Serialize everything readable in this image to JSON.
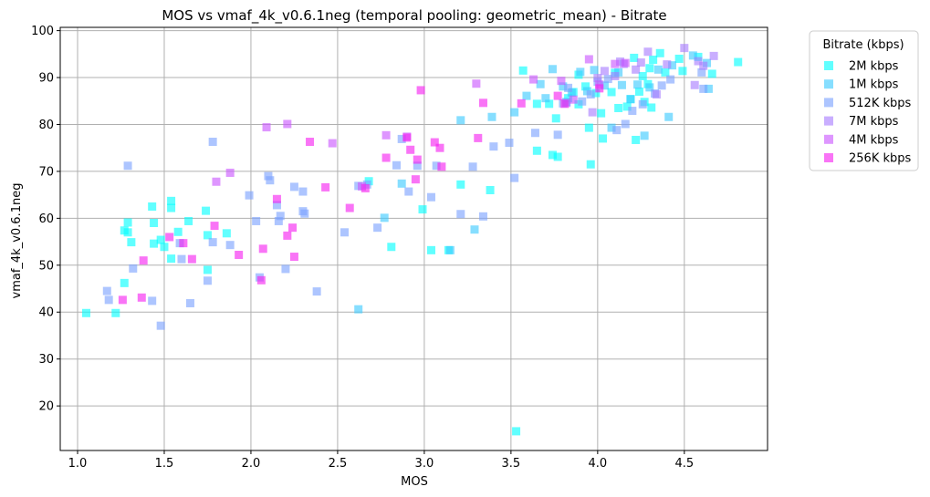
{
  "chart_data": {
    "type": "scatter",
    "title": "MOS vs vmaf_4k_v0.6.1neg (temporal pooling: geometric_mean) - Bitrate",
    "xlabel": "MOS",
    "ylabel": "vmaf_4k_v0.6.1neg",
    "xlim": [
      0.9,
      4.98
    ],
    "ylim": [
      10.5,
      100.7
    ],
    "xticks": [
      1.0,
      1.5,
      2.0,
      2.5,
      3.0,
      3.5,
      4.0,
      4.5
    ],
    "xtick_labels": [
      "1.0",
      "1.5",
      "2.0",
      "2.5",
      "3.0",
      "3.5",
      "4.0",
      "4.5"
    ],
    "yticks": [
      20,
      30,
      40,
      50,
      60,
      70,
      80,
      90,
      100
    ],
    "ytick_labels": [
      "20",
      "30",
      "40",
      "50",
      "60",
      "70",
      "80",
      "90",
      "100"
    ],
    "grid": true,
    "marker": "square",
    "legend": {
      "title": "Bitrate (kbps)",
      "placement": "outside-top-right"
    },
    "series": [
      {
        "name": "2M kbps",
        "color": "#00ffff",
        "points": [
          [
            1.05,
            39.8
          ],
          [
            1.22,
            39.8
          ],
          [
            1.27,
            46.2
          ],
          [
            1.27,
            57.4
          ],
          [
            1.29,
            59.1
          ],
          [
            1.29,
            57.0
          ],
          [
            1.31,
            54.9
          ],
          [
            1.43,
            62.5
          ],
          [
            1.44,
            59.0
          ],
          [
            1.44,
            54.6
          ],
          [
            1.48,
            55.4
          ],
          [
            1.5,
            53.9
          ],
          [
            1.54,
            63.7
          ],
          [
            1.54,
            62.2
          ],
          [
            1.54,
            51.4
          ],
          [
            1.58,
            57.1
          ],
          [
            1.64,
            59.4
          ],
          [
            1.74,
            61.6
          ],
          [
            1.75,
            56.4
          ],
          [
            1.75,
            49.0
          ],
          [
            1.86,
            56.8
          ],
          [
            2.68,
            67.9
          ],
          [
            2.81,
            53.9
          ],
          [
            2.99,
            61.9
          ],
          [
            3.04,
            53.2
          ],
          [
            3.14,
            53.2
          ],
          [
            3.21,
            67.2
          ],
          [
            3.38,
            66.0
          ],
          [
            3.53,
            14.6
          ],
          [
            3.57,
            91.5
          ],
          [
            3.65,
            84.4
          ],
          [
            3.65,
            74.4
          ],
          [
            3.72,
            84.4
          ],
          [
            3.74,
            73.5
          ],
          [
            3.76,
            81.3
          ],
          [
            3.77,
            73.1
          ],
          [
            3.83,
            85.6
          ],
          [
            3.86,
            86.9
          ],
          [
            3.89,
            90.6
          ],
          [
            3.89,
            84.3
          ],
          [
            3.93,
            88.1
          ],
          [
            3.95,
            79.3
          ],
          [
            3.96,
            71.5
          ],
          [
            3.99,
            86.7
          ],
          [
            4.02,
            82.4
          ],
          [
            4.03,
            77.0
          ],
          [
            4.08,
            86.9
          ],
          [
            4.1,
            91.0
          ],
          [
            4.12,
            83.5
          ],
          [
            4.17,
            83.8
          ],
          [
            4.19,
            85.4
          ],
          [
            4.21,
            94.2
          ],
          [
            4.22,
            76.7
          ],
          [
            4.24,
            87.0
          ],
          [
            4.26,
            90.3
          ],
          [
            4.27,
            84.8
          ],
          [
            4.29,
            88.6
          ],
          [
            4.3,
            92.0
          ],
          [
            4.31,
            83.6
          ],
          [
            4.32,
            93.8
          ],
          [
            4.36,
            95.2
          ],
          [
            4.39,
            91.1
          ],
          [
            4.47,
            94.0
          ],
          [
            4.49,
            91.4
          ],
          [
            4.58,
            94.4
          ],
          [
            4.66,
            90.8
          ],
          [
            4.81,
            93.3
          ]
        ]
      },
      {
        "name": "1M kbps",
        "color": "#3ccaff",
        "points": [
          [
            2.62,
            40.6
          ],
          [
            2.77,
            60.1
          ],
          [
            2.87,
            67.4
          ],
          [
            3.15,
            53.2
          ],
          [
            3.21,
            80.9
          ],
          [
            3.29,
            57.6
          ],
          [
            3.39,
            81.6
          ],
          [
            3.52,
            82.6
          ],
          [
            3.59,
            86.1
          ],
          [
            3.67,
            88.6
          ],
          [
            3.7,
            85.6
          ],
          [
            3.74,
            91.8
          ],
          [
            3.8,
            88.1
          ],
          [
            3.82,
            84.8
          ],
          [
            3.85,
            86.8
          ],
          [
            3.9,
            91.2
          ],
          [
            3.94,
            87.1
          ],
          [
            3.98,
            91.6
          ],
          [
            4.04,
            88.3
          ],
          [
            4.08,
            79.3
          ],
          [
            4.12,
            91.1
          ],
          [
            4.14,
            88.4
          ],
          [
            4.19,
            85.4
          ],
          [
            4.23,
            88.5
          ],
          [
            4.27,
            77.6
          ],
          [
            4.3,
            87.9
          ],
          [
            4.35,
            91.7
          ],
          [
            4.41,
            81.6
          ],
          [
            4.43,
            92.6
          ],
          [
            4.55,
            94.7
          ],
          [
            4.63,
            93.1
          ],
          [
            4.64,
            87.6
          ]
        ]
      },
      {
        "name": "512K kbps",
        "color": "#7aa1ff",
        "points": [
          [
            1.17,
            44.5
          ],
          [
            1.18,
            42.6
          ],
          [
            1.29,
            71.2
          ],
          [
            1.32,
            49.3
          ],
          [
            1.43,
            42.4
          ],
          [
            1.48,
            37.1
          ],
          [
            1.59,
            54.7
          ],
          [
            1.6,
            51.3
          ],
          [
            1.65,
            41.9
          ],
          [
            1.75,
            46.7
          ],
          [
            1.78,
            76.3
          ],
          [
            1.78,
            54.9
          ],
          [
            1.88,
            54.3
          ],
          [
            1.99,
            64.9
          ],
          [
            2.03,
            59.4
          ],
          [
            2.05,
            47.4
          ],
          [
            2.1,
            69.0
          ],
          [
            2.11,
            68.1
          ],
          [
            2.15,
            62.8
          ],
          [
            2.16,
            59.4
          ],
          [
            2.17,
            60.5
          ],
          [
            2.2,
            49.2
          ],
          [
            2.25,
            66.7
          ],
          [
            2.3,
            65.7
          ],
          [
            2.3,
            61.5
          ],
          [
            2.31,
            61.0
          ],
          [
            2.38,
            44.4
          ],
          [
            2.54,
            57.0
          ],
          [
            2.62,
            66.9
          ],
          [
            2.67,
            67.2
          ],
          [
            2.73,
            58.0
          ],
          [
            2.84,
            71.3
          ],
          [
            2.87,
            76.9
          ],
          [
            2.91,
            65.7
          ],
          [
            2.96,
            71.2
          ],
          [
            3.04,
            64.5
          ],
          [
            3.07,
            71.2
          ],
          [
            3.21,
            60.9
          ],
          [
            3.28,
            71.0
          ],
          [
            3.34,
            60.4
          ],
          [
            3.4,
            75.3
          ],
          [
            3.49,
            76.1
          ],
          [
            3.52,
            68.6
          ],
          [
            3.64,
            78.2
          ],
          [
            3.77,
            77.8
          ],
          [
            3.8,
            84.5
          ],
          [
            3.83,
            87.8
          ],
          [
            3.91,
            84.9
          ],
          [
            3.96,
            86.4
          ],
          [
            4.0,
            89.1
          ],
          [
            4.06,
            89.7
          ],
          [
            4.11,
            78.8
          ],
          [
            4.16,
            80.1
          ],
          [
            4.2,
            82.9
          ],
          [
            4.26,
            84.3
          ],
          [
            4.33,
            86.6
          ],
          [
            4.37,
            88.3
          ],
          [
            4.42,
            89.6
          ],
          [
            4.6,
            91.1
          ],
          [
            4.61,
            87.6
          ]
        ]
      },
      {
        "name": "7M kbps",
        "color": "#a87cff",
        "points": [
          [
            3.82,
            84.6
          ],
          [
            3.97,
            82.6
          ],
          [
            4.0,
            89.9
          ],
          [
            4.04,
            91.4
          ],
          [
            4.1,
            90.3
          ],
          [
            4.13,
            93.4
          ],
          [
            4.15,
            92.9
          ],
          [
            4.22,
            91.7
          ],
          [
            4.25,
            93.2
          ],
          [
            4.29,
            95.5
          ],
          [
            4.34,
            86.4
          ],
          [
            4.4,
            92.8
          ],
          [
            4.5,
            96.3
          ],
          [
            4.56,
            88.4
          ],
          [
            4.58,
            93.5
          ],
          [
            4.61,
            92.5
          ],
          [
            4.67,
            94.6
          ]
        ]
      },
      {
        "name": "4M kbps",
        "color": "#c956ff",
        "points": [
          [
            1.8,
            67.8
          ],
          [
            1.88,
            69.7
          ],
          [
            2.09,
            79.4
          ],
          [
            2.21,
            80.1
          ],
          [
            2.47,
            76.0
          ],
          [
            2.64,
            66.8
          ],
          [
            2.78,
            77.7
          ],
          [
            2.9,
            77.4
          ],
          [
            3.3,
            88.7
          ],
          [
            3.63,
            89.6
          ],
          [
            3.79,
            89.3
          ],
          [
            3.86,
            85.3
          ],
          [
            3.95,
            93.9
          ],
          [
            4.01,
            88.5
          ],
          [
            4.1,
            92.9
          ],
          [
            4.16,
            93.1
          ]
        ]
      },
      {
        "name": "256K kbps",
        "color": "#f61ff0",
        "points": [
          [
            1.26,
            42.6
          ],
          [
            1.37,
            43.1
          ],
          [
            1.38,
            51.0
          ],
          [
            1.53,
            56.0
          ],
          [
            1.61,
            54.7
          ],
          [
            1.66,
            51.3
          ],
          [
            1.79,
            58.4
          ],
          [
            1.93,
            52.2
          ],
          [
            2.06,
            46.8
          ],
          [
            2.07,
            53.5
          ],
          [
            2.15,
            64.1
          ],
          [
            2.21,
            56.3
          ],
          [
            2.24,
            58.0
          ],
          [
            2.25,
            51.8
          ],
          [
            2.34,
            76.3
          ],
          [
            2.43,
            66.6
          ],
          [
            2.57,
            62.2
          ],
          [
            2.66,
            66.4
          ],
          [
            2.78,
            72.9
          ],
          [
            2.9,
            77.2
          ],
          [
            2.92,
            74.6
          ],
          [
            2.95,
            68.3
          ],
          [
            2.96,
            72.5
          ],
          [
            2.98,
            87.3
          ],
          [
            3.06,
            76.2
          ],
          [
            3.09,
            75.0
          ],
          [
            3.1,
            71.0
          ],
          [
            3.31,
            77.1
          ],
          [
            3.34,
            84.6
          ],
          [
            3.56,
            84.5
          ],
          [
            3.77,
            86.1
          ],
          [
            3.81,
            84.4
          ],
          [
            4.01,
            87.7
          ]
        ]
      }
    ]
  }
}
